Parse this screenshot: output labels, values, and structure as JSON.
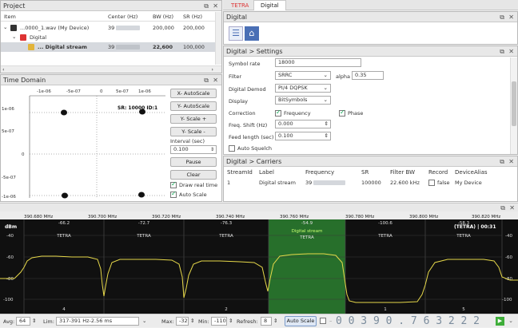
{
  "project": {
    "title": "Project",
    "columns": [
      "Item",
      "Center (Hz)",
      "BW (Hz)",
      "SR (Hz)"
    ],
    "rows": [
      {
        "name": "...0000_1.wav (My Device)",
        "center": "39",
        "bw": "200,000",
        "sr": "200,000"
      },
      {
        "name": "Digital",
        "center": "",
        "bw": "",
        "sr": ""
      },
      {
        "name": "... Digital stream",
        "center": "39",
        "bw": "22,600",
        "sr": "100,000"
      }
    ]
  },
  "time_domain": {
    "title": "Time Domain",
    "top_ticks": [
      "-1e-06",
      "-5e-07",
      "0",
      "5e-07",
      "1e-06"
    ],
    "left_ticks": [
      "1e-06",
      "5e-07",
      "0",
      "-5e-07",
      "-1e-06"
    ],
    "sr_label": "SR: 10000 ID:1",
    "buttons": {
      "x_autoscale": "X- AutoScale",
      "y_autoscale": "Y- AutoScale",
      "y_scale_plus": "Y- Scale +",
      "y_scale_minus": "Y- Scale -",
      "pause": "Pause",
      "clear": "Clear"
    },
    "interval_label": "Interval (sec)",
    "interval_value": "0.100",
    "draw_realtime_label": "Draw real time",
    "autoscale_label": "Auto Scale"
  },
  "tabs": [
    "TETRA",
    "Digital"
  ],
  "digital": {
    "title": "Digital"
  },
  "settings": {
    "title": "Digital > Settings",
    "symbol_rate_label": "Symbol rate",
    "symbol_rate_value": "18000",
    "filter_label": "Filter",
    "filter_value": "SRRC",
    "alpha_label": "alpha",
    "alpha_value": "0.35",
    "demod_label": "Digital Demod",
    "demod_value": "PI/4 DQPSK",
    "display_label": "Display",
    "display_value": "BitSymbols",
    "correction_label": "Correction",
    "frequency_label": "Frequency",
    "phase_label": "Phase",
    "freq_shift_label": "Freq. Shift (Hz)",
    "freq_shift_value": "0.000",
    "feed_length_label": "Feed length (sec)",
    "feed_length_value": "0.100",
    "auto_squelch_label": "Auto Squelch"
  },
  "carriers": {
    "title": "Digital > Carriers",
    "columns": [
      "StreamId",
      "Label",
      "Frequency",
      "SR",
      "Filter BW",
      "Record",
      "DeviceAlias"
    ],
    "row": {
      "id": "1",
      "label": "Digital stream",
      "frequency": "39",
      "sr": "100000",
      "bw": "22.600 kHz",
      "record": "false",
      "alias": "My Device"
    }
  },
  "spectrum": {
    "freq_ticks": [
      "390.680 MHz",
      "390.700 MHz",
      "390.720 MHz",
      "390.740 MHz",
      "390.760 MHz",
      "390.780 MHz",
      "390.800 MHz",
      "390.820 MHz"
    ],
    "dbm_label": "dBm",
    "top_right_label": "(TETRA) | 00:31",
    "db_ticks": [
      "-40",
      "-60",
      "-80",
      "-100"
    ],
    "channels": [
      {
        "offset": "-66.2",
        "name": "TETRA",
        "num": "4"
      },
      {
        "offset": "-72.7",
        "name": "TETRA",
        "num": ""
      },
      {
        "offset": "-76.3",
        "name": "TETRA",
        "num": "2"
      },
      {
        "offset": "-54.9",
        "name": "TETRA",
        "num": "",
        "sub": "Digital stream"
      },
      {
        "offset": "-100.6",
        "name": "TETRA",
        "num": "1"
      },
      {
        "offset": "-58.3",
        "name": "TETRA",
        "num": "5"
      }
    ]
  },
  "statusbar": {
    "avg_label": "Avg:",
    "avg_value": "64",
    "lim_label": "Lim:",
    "lim_value": "317-391 Hz-2.56 ms",
    "max_label": "Max:",
    "max_value": "-32",
    "min_label": "Min:",
    "min_value": "-110",
    "refresh_label": "Refresh:",
    "refresh_value": "8",
    "autoscale_label": "Auto Scale",
    "frequency_digits": "0 0 3 9 0 . 7 6 3 2 2 2",
    "accent": "#3fae3a"
  }
}
